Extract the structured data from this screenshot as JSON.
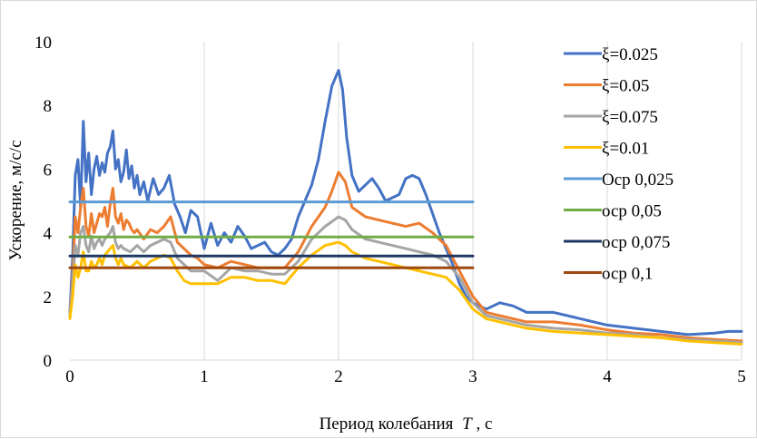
{
  "chart_data": {
    "type": "line",
    "title": "",
    "xlabel": "Период колебания",
    "xlabel_var": "T",
    "xlabel_unit": ", с",
    "ylabel": "Ускорение, м/с/с",
    "xlim": [
      0,
      5
    ],
    "ylim": [
      0,
      10
    ],
    "xticks": [
      "0",
      "1",
      "2",
      "3",
      "4",
      "5"
    ],
    "yticks": [
      "0",
      "2",
      "4",
      "6",
      "8",
      "10"
    ],
    "grid": "vertical",
    "legend": "right",
    "series": [
      {
        "name": "ξ=0.025",
        "color": "#4472C4",
        "x": [
          0.0,
          0.02,
          0.04,
          0.06,
          0.08,
          0.1,
          0.12,
          0.14,
          0.16,
          0.18,
          0.2,
          0.22,
          0.24,
          0.26,
          0.28,
          0.3,
          0.32,
          0.34,
          0.36,
          0.38,
          0.4,
          0.42,
          0.44,
          0.46,
          0.48,
          0.5,
          0.52,
          0.55,
          0.58,
          0.62,
          0.66,
          0.7,
          0.74,
          0.78,
          0.82,
          0.86,
          0.9,
          0.95,
          1.0,
          1.05,
          1.1,
          1.15,
          1.2,
          1.25,
          1.3,
          1.35,
          1.4,
          1.45,
          1.5,
          1.55,
          1.6,
          1.65,
          1.7,
          1.75,
          1.8,
          1.85,
          1.9,
          1.95,
          2.0,
          2.03,
          2.06,
          2.1,
          2.15,
          2.2,
          2.25,
          2.3,
          2.35,
          2.4,
          2.45,
          2.5,
          2.55,
          2.6,
          2.65,
          2.7,
          2.75,
          2.8,
          2.85,
          2.9,
          2.95,
          3.0,
          3.05,
          3.1,
          3.2,
          3.3,
          3.4,
          3.5,
          3.6,
          3.8,
          4.0,
          4.2,
          4.4,
          4.6,
          4.8,
          4.9,
          5.0
        ],
        "y": [
          1.5,
          3.2,
          5.8,
          6.3,
          4.8,
          7.5,
          5.6,
          6.5,
          5.2,
          6.0,
          6.4,
          5.8,
          6.2,
          5.9,
          6.5,
          6.7,
          7.2,
          6.0,
          6.3,
          5.6,
          5.9,
          6.6,
          5.7,
          6.1,
          5.4,
          5.8,
          5.2,
          5.6,
          5.0,
          5.7,
          5.2,
          5.4,
          5.8,
          4.9,
          4.5,
          4.0,
          4.7,
          4.5,
          3.5,
          4.3,
          3.6,
          4.0,
          3.7,
          4.2,
          3.9,
          3.5,
          3.6,
          3.7,
          3.4,
          3.3,
          3.5,
          3.8,
          4.5,
          5.0,
          5.5,
          6.3,
          7.5,
          8.6,
          9.1,
          8.5,
          7.0,
          5.8,
          5.3,
          5.5,
          5.7,
          5.4,
          5.0,
          5.1,
          5.2,
          5.7,
          5.8,
          5.7,
          5.2,
          4.6,
          4.0,
          3.5,
          3.0,
          2.4,
          2.0,
          1.8,
          1.7,
          1.6,
          1.8,
          1.7,
          1.5,
          1.5,
          1.5,
          1.3,
          1.1,
          1.0,
          0.9,
          0.8,
          0.85,
          0.9,
          0.9
        ]
      },
      {
        "name": "ξ=0.05",
        "color": "#ED7D31",
        "x": [
          0.0,
          0.02,
          0.04,
          0.06,
          0.08,
          0.1,
          0.12,
          0.14,
          0.16,
          0.18,
          0.2,
          0.22,
          0.24,
          0.26,
          0.28,
          0.3,
          0.32,
          0.34,
          0.36,
          0.38,
          0.4,
          0.42,
          0.44,
          0.46,
          0.48,
          0.5,
          0.55,
          0.6,
          0.65,
          0.7,
          0.75,
          0.8,
          0.85,
          0.9,
          0.95,
          1.0,
          1.1,
          1.2,
          1.3,
          1.4,
          1.5,
          1.6,
          1.7,
          1.8,
          1.9,
          1.95,
          2.0,
          2.05,
          2.1,
          2.2,
          2.3,
          2.4,
          2.5,
          2.6,
          2.7,
          2.8,
          2.9,
          3.0,
          3.1,
          3.2,
          3.4,
          3.6,
          3.8,
          4.0,
          4.2,
          4.4,
          4.6,
          4.8,
          5.0
        ],
        "y": [
          1.4,
          2.6,
          4.5,
          4.0,
          4.8,
          5.4,
          4.2,
          3.9,
          4.6,
          4.0,
          4.3,
          4.6,
          4.5,
          4.8,
          4.2,
          4.9,
          5.4,
          4.5,
          4.3,
          4.6,
          4.1,
          4.4,
          4.3,
          4.1,
          4.0,
          4.1,
          3.8,
          4.1,
          4.0,
          4.2,
          4.5,
          3.7,
          3.5,
          3.3,
          3.2,
          3.0,
          2.9,
          3.1,
          3.0,
          2.9,
          2.9,
          2.9,
          3.4,
          4.2,
          4.8,
          5.3,
          5.9,
          5.6,
          4.8,
          4.5,
          4.4,
          4.3,
          4.2,
          4.3,
          4.0,
          3.6,
          2.8,
          2.0,
          1.5,
          1.4,
          1.2,
          1.2,
          1.1,
          0.95,
          0.85,
          0.8,
          0.7,
          0.65,
          0.6
        ]
      },
      {
        "name": "ξ=0.075",
        "color": "#A5A5A5",
        "x": [
          0.0,
          0.02,
          0.04,
          0.06,
          0.08,
          0.1,
          0.12,
          0.14,
          0.16,
          0.18,
          0.2,
          0.22,
          0.24,
          0.26,
          0.28,
          0.3,
          0.32,
          0.34,
          0.36,
          0.38,
          0.4,
          0.45,
          0.5,
          0.55,
          0.6,
          0.65,
          0.7,
          0.75,
          0.8,
          0.85,
          0.9,
          1.0,
          1.1,
          1.2,
          1.3,
          1.4,
          1.5,
          1.6,
          1.7,
          1.8,
          1.9,
          2.0,
          2.05,
          2.1,
          2.2,
          2.3,
          2.4,
          2.5,
          2.6,
          2.7,
          2.8,
          2.9,
          3.0,
          3.1,
          3.2,
          3.4,
          3.6,
          3.8,
          4.0,
          4.2,
          4.4,
          4.6,
          4.8,
          5.0
        ],
        "y": [
          1.4,
          2.4,
          3.6,
          3.3,
          4.0,
          4.2,
          3.6,
          3.4,
          3.9,
          3.5,
          3.7,
          3.8,
          3.6,
          3.8,
          3.9,
          4.0,
          4.2,
          3.7,
          3.5,
          3.6,
          3.5,
          3.4,
          3.6,
          3.4,
          3.6,
          3.7,
          3.8,
          3.7,
          3.2,
          3.0,
          2.8,
          2.8,
          2.5,
          2.9,
          2.8,
          2.8,
          2.7,
          2.7,
          3.1,
          3.8,
          4.2,
          4.5,
          4.4,
          4.1,
          3.8,
          3.7,
          3.6,
          3.5,
          3.4,
          3.3,
          3.1,
          2.6,
          1.8,
          1.4,
          1.3,
          1.1,
          1.0,
          0.95,
          0.85,
          0.8,
          0.7,
          0.65,
          0.6,
          0.55
        ]
      },
      {
        "name": "ξ=0.01",
        "color": "#FFC000",
        "x": [
          0.0,
          0.02,
          0.04,
          0.06,
          0.08,
          0.1,
          0.12,
          0.14,
          0.16,
          0.18,
          0.2,
          0.22,
          0.24,
          0.26,
          0.28,
          0.3,
          0.32,
          0.34,
          0.36,
          0.38,
          0.4,
          0.45,
          0.5,
          0.55,
          0.6,
          0.65,
          0.7,
          0.75,
          0.8,
          0.85,
          0.9,
          1.0,
          1.1,
          1.2,
          1.3,
          1.4,
          1.5,
          1.6,
          1.7,
          1.8,
          1.9,
          2.0,
          2.05,
          2.1,
          2.2,
          2.3,
          2.4,
          2.5,
          2.6,
          2.7,
          2.8,
          2.9,
          3.0,
          3.1,
          3.2,
          3.4,
          3.6,
          3.8,
          4.0,
          4.2,
          4.4,
          4.6,
          4.8,
          5.0
        ],
        "y": [
          1.3,
          2.0,
          3.0,
          2.6,
          2.9,
          3.4,
          2.8,
          2.8,
          3.1,
          2.9,
          3.0,
          3.2,
          3.0,
          3.3,
          3.4,
          3.5,
          3.6,
          3.2,
          3.0,
          3.2,
          3.0,
          2.9,
          3.1,
          2.9,
          3.1,
          3.2,
          3.3,
          3.2,
          2.8,
          2.5,
          2.4,
          2.4,
          2.4,
          2.6,
          2.6,
          2.5,
          2.5,
          2.4,
          2.9,
          3.3,
          3.6,
          3.7,
          3.6,
          3.4,
          3.2,
          3.1,
          3.0,
          2.9,
          2.8,
          2.7,
          2.6,
          2.2,
          1.6,
          1.3,
          1.2,
          1.0,
          0.9,
          0.85,
          0.8,
          0.75,
          0.7,
          0.6,
          0.55,
          0.5
        ]
      },
      {
        "name": "Оср 0,025",
        "color": "#5B9BD5",
        "x": [
          0.0,
          3.0
        ],
        "y": [
          4.97,
          4.97
        ]
      },
      {
        "name": "оср 0,05",
        "color": "#70AD47",
        "x": [
          0.0,
          3.0
        ],
        "y": [
          3.87,
          3.87
        ]
      },
      {
        "name": "оср 0,075",
        "color": "#203864",
        "x": [
          0.0,
          3.0
        ],
        "y": [
          3.27,
          3.27
        ]
      },
      {
        "name": "оср 0,1",
        "color": "#9E480E",
        "x": [
          0.0,
          3.0
        ],
        "y": [
          2.9,
          2.9
        ]
      }
    ]
  }
}
